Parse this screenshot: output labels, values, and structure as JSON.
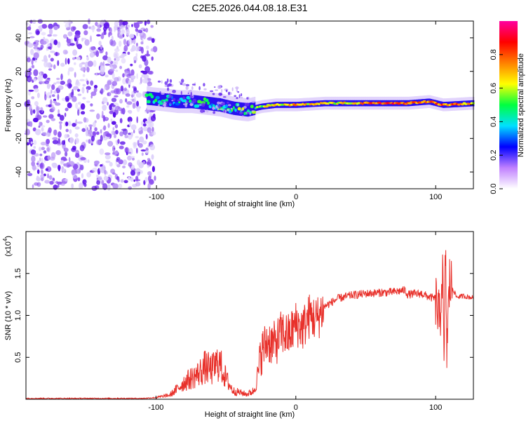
{
  "title": "C2E5.2026.044.08.18.E31",
  "chart_data": [
    {
      "type": "heatmap",
      "name": "spectrogram",
      "xlabel": "Height of straight line (km)",
      "ylabel": "Frequency (Hz)",
      "xlim": [
        -193,
        127
      ],
      "ylim": [
        -50,
        50
      ],
      "x_ticks": [
        -100,
        0,
        100
      ],
      "x_tick_labels": [
        "-100",
        "0",
        "100"
      ],
      "y_ticks": [
        -40,
        -20,
        0,
        20,
        40
      ],
      "y_tick_labels": [
        "-40",
        "-20",
        "0",
        "20",
        "40"
      ],
      "colorbar": {
        "label": "Normalized spectral amplitude",
        "range": [
          0,
          1
        ],
        "ticks": [
          0.0,
          0.2,
          0.4,
          0.6,
          0.8
        ],
        "tick_labels": [
          "0.0",
          "0.2",
          "0.4",
          "0.6",
          "0.8"
        ],
        "colormap": [
          "#ffffff",
          "#c080ff",
          "#0000ff",
          "#00e0ff",
          "#00ff40",
          "#ffff00",
          "#ff8000",
          "#ff0000",
          "#ff00a0"
        ]
      },
      "noise_region_x": [
        -193,
        -101
      ],
      "signal_trace": {
        "x": [
          -107,
          -95,
          -85,
          -75,
          -65,
          -55,
          -45,
          -35,
          -25,
          -15,
          -5,
          0,
          20,
          40,
          60,
          80,
          95,
          105,
          127
        ],
        "freq": [
          4,
          3,
          2,
          2,
          1,
          0,
          -2,
          -3,
          -1,
          0,
          0,
          0,
          1,
          1,
          1,
          1,
          2,
          0,
          1
        ],
        "amplitude": [
          0.55,
          0.55,
          0.5,
          0.5,
          0.55,
          0.55,
          0.6,
          0.65,
          0.7,
          0.75,
          0.8,
          0.8,
          0.75,
          0.8,
          0.95,
          0.95,
          0.85,
          0.9,
          0.8
        ]
      }
    },
    {
      "type": "line",
      "name": "snr",
      "xlabel": "Height of straight line (km)",
      "ylabel": "SNR (10 * v/v)",
      "y_scale_label": "(x10",
      "y_scale_exponent": "4",
      "y_scale_close": ")",
      "xlim": [
        -193,
        127
      ],
      "ylim": [
        0,
        2.0
      ],
      "x_ticks": [
        -100,
        0,
        100
      ],
      "x_tick_labels": [
        "-100",
        "0",
        "100"
      ],
      "y_ticks": [
        0.5,
        1.0,
        1.5
      ],
      "y_tick_labels": [
        "0.5",
        "1.0",
        "1.5"
      ],
      "color": "#e8302a",
      "series": [
        {
          "name": "SNR",
          "x": [
            -193,
            -150,
            -110,
            -100,
            -90,
            -85,
            -80,
            -75,
            -70,
            -65,
            -60,
            -55,
            -50,
            -45,
            -40,
            -35,
            -30,
            -27,
            -25,
            -20,
            -15,
            -10,
            -5,
            0,
            5,
            10,
            15,
            20,
            25,
            30,
            40,
            50,
            60,
            70,
            78,
            80,
            90,
            95,
            100,
            103,
            105,
            106,
            107,
            108,
            110,
            115,
            120,
            127
          ],
          "y": [
            0.01,
            0.01,
            0.01,
            0.02,
            0.05,
            0.12,
            0.2,
            0.25,
            0.3,
            0.38,
            0.35,
            0.45,
            0.25,
            0.1,
            0.08,
            0.06,
            0.1,
            0.3,
            0.55,
            0.7,
            0.65,
            0.8,
            0.75,
            0.9,
            0.85,
            1.0,
            0.95,
            1.1,
            1.15,
            1.2,
            1.24,
            1.26,
            1.27,
            1.28,
            1.3,
            1.25,
            1.26,
            1.22,
            1.2,
            0.9,
            1.6,
            0.3,
            1.8,
            0.6,
            1.4,
            1.22,
            1.23,
            1.21
          ]
        }
      ]
    }
  ]
}
